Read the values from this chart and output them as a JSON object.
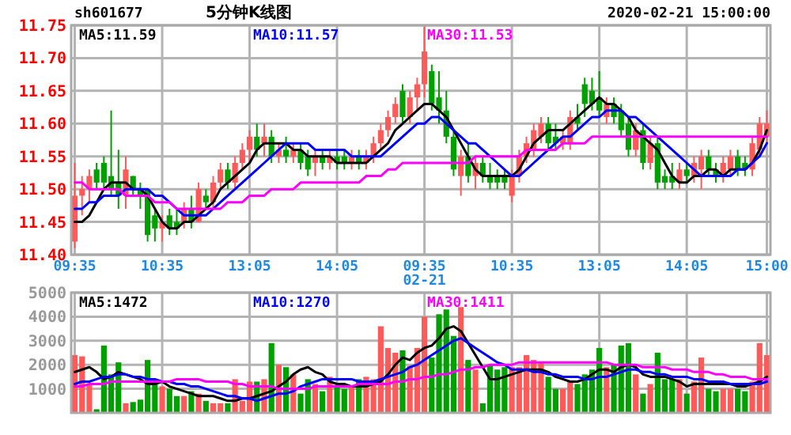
{
  "chart_data": [
    {
      "type": "candlestick",
      "title": "5分钟K线图",
      "subtitle": "sh601677",
      "annotations": [
        "2020-02-21 15:00:00"
      ],
      "categories": [
        "09:35",
        null,
        null,
        null,
        null,
        null,
        null,
        null,
        null,
        null,
        null,
        null,
        "10:35",
        null,
        null,
        null,
        null,
        null,
        null,
        null,
        null,
        null,
        null,
        null,
        "13:05",
        null,
        null,
        null,
        null,
        null,
        null,
        null,
        null,
        null,
        null,
        null,
        "14:05",
        null,
        null,
        null,
        null,
        null,
        null,
        null,
        null,
        null,
        null,
        null,
        "09:35\n02-21",
        null,
        null,
        null,
        null,
        null,
        null,
        null,
        null,
        null,
        null,
        null,
        "10:35",
        null,
        null,
        null,
        null,
        null,
        null,
        null,
        null,
        null,
        null,
        null,
        "13:05",
        null,
        null,
        null,
        null,
        null,
        null,
        null,
        null,
        null,
        null,
        null,
        "14:05",
        null,
        null,
        null,
        null,
        null,
        null,
        null,
        null,
        null,
        null,
        "15:00"
      ],
      "ohlc": [
        [
          11.42,
          11.54,
          11.41,
          11.49
        ],
        [
          11.49,
          11.52,
          11.46,
          11.5
        ],
        [
          11.5,
          11.53,
          11.48,
          11.52
        ],
        [
          11.53,
          11.54,
          11.5,
          11.51
        ],
        [
          11.54,
          11.55,
          11.5,
          11.51
        ],
        [
          11.52,
          11.62,
          11.49,
          11.5
        ],
        [
          11.51,
          11.56,
          11.47,
          11.49
        ],
        [
          11.49,
          11.55,
          11.47,
          11.53
        ],
        [
          11.52,
          11.52,
          11.49,
          11.5
        ],
        [
          11.5,
          11.51,
          11.47,
          11.49
        ],
        [
          11.5,
          11.5,
          11.42,
          11.43
        ],
        [
          11.46,
          11.47,
          11.42,
          11.44
        ],
        [
          11.44,
          11.46,
          11.42,
          11.45
        ],
        [
          11.46,
          11.47,
          11.43,
          11.44
        ],
        [
          11.45,
          11.47,
          11.43,
          11.44
        ],
        [
          11.45,
          11.48,
          11.44,
          11.47
        ],
        [
          11.47,
          11.49,
          11.44,
          11.45
        ],
        [
          11.45,
          11.51,
          11.45,
          11.5
        ],
        [
          11.49,
          11.5,
          11.47,
          11.48
        ],
        [
          11.48,
          11.52,
          11.47,
          11.51
        ],
        [
          11.51,
          11.54,
          11.5,
          11.53
        ],
        [
          11.53,
          11.54,
          11.5,
          11.51
        ],
        [
          11.51,
          11.55,
          11.5,
          11.54
        ],
        [
          11.54,
          11.57,
          11.53,
          11.56
        ],
        [
          11.56,
          11.59,
          11.54,
          11.58
        ],
        [
          11.58,
          11.6,
          11.55,
          11.56
        ],
        [
          11.57,
          11.6,
          11.55,
          11.58
        ],
        [
          11.58,
          11.59,
          11.54,
          11.55
        ],
        [
          11.55,
          11.57,
          11.54,
          11.56
        ],
        [
          11.56,
          11.58,
          11.54,
          11.55
        ],
        [
          11.55,
          11.57,
          11.54,
          11.56
        ],
        [
          11.56,
          11.57,
          11.53,
          11.54
        ],
        [
          11.55,
          11.56,
          11.52,
          11.53
        ],
        [
          11.54,
          11.56,
          11.52,
          11.55
        ],
        [
          11.55,
          11.56,
          11.53,
          11.54
        ],
        [
          11.54,
          11.56,
          11.53,
          11.55
        ],
        [
          11.55,
          11.56,
          11.53,
          11.54
        ],
        [
          11.55,
          11.56,
          11.53,
          11.54
        ],
        [
          11.54,
          11.56,
          11.53,
          11.55
        ],
        [
          11.55,
          11.56,
          11.53,
          11.54
        ],
        [
          11.54,
          11.56,
          11.53,
          11.55
        ],
        [
          11.55,
          11.58,
          11.54,
          11.57
        ],
        [
          11.57,
          11.6,
          11.56,
          11.59
        ],
        [
          11.59,
          11.62,
          11.58,
          11.61
        ],
        [
          11.61,
          11.64,
          11.6,
          11.63
        ],
        [
          11.65,
          11.66,
          11.6,
          11.61
        ],
        [
          11.61,
          11.65,
          11.6,
          11.64
        ],
        [
          11.64,
          11.67,
          11.62,
          11.66
        ],
        [
          11.66,
          11.75,
          11.64,
          11.71
        ],
        [
          11.68,
          11.69,
          11.62,
          11.63
        ],
        [
          11.64,
          11.68,
          11.6,
          11.62
        ],
        [
          11.62,
          11.65,
          11.57,
          11.58
        ],
        [
          11.58,
          11.59,
          11.52,
          11.53
        ],
        [
          11.52,
          11.56,
          11.49,
          11.55
        ],
        [
          11.55,
          11.57,
          11.51,
          11.52
        ],
        [
          11.52,
          11.55,
          11.5,
          11.54
        ],
        [
          11.54,
          11.55,
          11.51,
          11.52
        ],
        [
          11.52,
          11.54,
          11.5,
          11.51
        ],
        [
          11.52,
          11.53,
          11.5,
          11.51
        ],
        [
          11.52,
          11.53,
          11.5,
          11.51
        ],
        [
          11.49,
          11.53,
          11.48,
          11.52
        ],
        [
          11.52,
          11.56,
          11.51,
          11.55
        ],
        [
          11.55,
          11.58,
          11.54,
          11.57
        ],
        [
          11.56,
          11.6,
          11.55,
          11.59
        ],
        [
          11.58,
          11.61,
          11.57,
          11.6
        ],
        [
          11.6,
          11.61,
          11.56,
          11.57
        ],
        [
          11.58,
          11.6,
          11.56,
          11.57
        ],
        [
          11.57,
          11.59,
          11.56,
          11.58
        ],
        [
          11.57,
          11.62,
          11.56,
          11.61
        ],
        [
          11.61,
          11.63,
          11.59,
          11.6
        ],
        [
          11.66,
          11.67,
          11.61,
          11.63
        ],
        [
          11.65,
          11.67,
          11.62,
          11.63
        ],
        [
          11.64,
          11.68,
          11.61,
          11.62
        ],
        [
          11.61,
          11.64,
          11.6,
          11.63
        ],
        [
          11.63,
          11.64,
          11.6,
          11.61
        ],
        [
          11.62,
          11.63,
          11.58,
          11.59
        ],
        [
          11.6,
          11.61,
          11.55,
          11.56
        ],
        [
          11.56,
          11.6,
          11.55,
          11.59
        ],
        [
          11.59,
          11.6,
          11.53,
          11.54
        ],
        [
          11.54,
          11.58,
          11.53,
          11.57
        ],
        [
          11.57,
          11.58,
          11.5,
          11.51
        ],
        [
          11.52,
          11.53,
          11.5,
          11.51
        ],
        [
          11.52,
          11.54,
          11.5,
          11.51
        ],
        [
          11.51,
          11.54,
          11.5,
          11.53
        ],
        [
          11.53,
          11.54,
          11.51,
          11.52
        ],
        [
          11.52,
          11.55,
          11.51,
          11.54
        ],
        [
          11.53,
          11.56,
          11.5,
          11.55
        ],
        [
          11.55,
          11.56,
          11.52,
          11.53
        ],
        [
          11.53,
          11.54,
          11.51,
          11.52
        ],
        [
          11.52,
          11.55,
          11.51,
          11.54
        ],
        [
          11.53,
          11.56,
          11.52,
          11.55
        ],
        [
          11.55,
          11.56,
          11.52,
          11.53
        ],
        [
          11.54,
          11.55,
          11.52,
          11.53
        ],
        [
          11.53,
          11.58,
          11.52,
          11.57
        ],
        [
          11.56,
          11.61,
          11.55,
          11.6
        ],
        [
          11.58,
          11.62,
          11.57,
          11.6
        ]
      ],
      "colors": [
        "#ff5a5a",
        "#ff5a5a",
        "#ff5a5a",
        "#00a000",
        "#00a000",
        "#00a000",
        "#00a000",
        "#ff5a5a",
        "#00a000",
        "#00a000",
        "#00a000",
        "#00a000",
        "#ff5a5a",
        "#00a000",
        "#00a000",
        "#ff5a5a",
        "#00a000",
        "#ff5a5a",
        "#00a000",
        "#ff5a5a",
        "#ff5a5a",
        "#00a000",
        "#ff5a5a",
        "#ff5a5a",
        "#ff5a5a",
        "#00a000",
        "#ff5a5a",
        "#00a000",
        "#ff5a5a",
        "#00a000",
        "#ff5a5a",
        "#00a000",
        "#00a000",
        "#ff5a5a",
        "#00a000",
        "#ff5a5a",
        "#00a000",
        "#00a000",
        "#ff5a5a",
        "#00a000",
        "#ff5a5a",
        "#ff5a5a",
        "#ff5a5a",
        "#ff5a5a",
        "#ff5a5a",
        "#00a000",
        "#ff5a5a",
        "#ff5a5a",
        "#ff5a5a",
        "#00a000",
        "#00a000",
        "#00a000",
        "#00a000",
        "#ff5a5a",
        "#00a000",
        "#ff5a5a",
        "#00a000",
        "#00a000",
        "#00a000",
        "#00a000",
        "#ff5a5a",
        "#ff5a5a",
        "#ff5a5a",
        "#ff5a5a",
        "#ff5a5a",
        "#00a000",
        "#00a000",
        "#ff5a5a",
        "#ff5a5a",
        "#00a000",
        "#00a000",
        "#00a000",
        "#00a000",
        "#ff5a5a",
        "#00a000",
        "#00a000",
        "#00a000",
        "#ff5a5a",
        "#00a000",
        "#ff5a5a",
        "#00a000",
        "#00a000",
        "#00a000",
        "#ff5a5a",
        "#00a000",
        "#ff5a5a",
        "#ff5a5a",
        "#00a000",
        "#00a000",
        "#ff5a5a",
        "#ff5a5a",
        "#00a000",
        "#00a000",
        "#ff5a5a",
        "#ff5a5a",
        "#ff5a5a"
      ],
      "series": [
        {
          "type": "line",
          "name": "MA5:11.59",
          "color": "#000000",
          "values": [
            11.45,
            11.45,
            11.46,
            11.48,
            11.5,
            11.51,
            11.51,
            11.51,
            11.5,
            11.5,
            11.49,
            11.47,
            11.45,
            11.44,
            11.44,
            11.45,
            11.45,
            11.46,
            11.47,
            11.48,
            11.5,
            11.51,
            11.52,
            11.53,
            11.54,
            11.56,
            11.57,
            11.57,
            11.57,
            11.57,
            11.56,
            11.56,
            11.55,
            11.55,
            11.55,
            11.55,
            11.54,
            11.54,
            11.54,
            11.54,
            11.54,
            11.55,
            11.56,
            11.57,
            11.59,
            11.6,
            11.61,
            11.62,
            11.63,
            11.63,
            11.62,
            11.61,
            11.59,
            11.57,
            11.55,
            11.53,
            11.52,
            11.52,
            11.52,
            11.52,
            11.52,
            11.53,
            11.55,
            11.57,
            11.58,
            11.59,
            11.59,
            11.59,
            11.6,
            11.61,
            11.62,
            11.63,
            11.64,
            11.63,
            11.63,
            11.62,
            11.61,
            11.59,
            11.58,
            11.57,
            11.56,
            11.54,
            11.52,
            11.51,
            11.51,
            11.52,
            11.52,
            11.53,
            11.53,
            11.52,
            11.53,
            11.53,
            11.53,
            11.54,
            11.56,
            11.59
          ]
        },
        {
          "type": "line",
          "name": "MA10:11.57",
          "color": "#0000ff",
          "values": [
            11.47,
            11.47,
            11.48,
            11.48,
            11.49,
            11.49,
            11.49,
            11.5,
            11.5,
            11.5,
            11.5,
            11.49,
            11.49,
            11.48,
            11.47,
            11.46,
            11.46,
            11.46,
            11.46,
            11.47,
            11.48,
            11.49,
            11.5,
            11.51,
            11.52,
            11.53,
            11.54,
            11.55,
            11.56,
            11.57,
            11.57,
            11.57,
            11.57,
            11.56,
            11.56,
            11.56,
            11.56,
            11.56,
            11.55,
            11.55,
            11.55,
            11.55,
            11.55,
            11.56,
            11.57,
            11.58,
            11.59,
            11.6,
            11.6,
            11.61,
            11.61,
            11.6,
            11.59,
            11.58,
            11.57,
            11.57,
            11.56,
            11.55,
            11.54,
            11.53,
            11.52,
            11.52,
            11.53,
            11.54,
            11.55,
            11.56,
            11.57,
            11.58,
            11.58,
            11.59,
            11.6,
            11.61,
            11.61,
            11.62,
            11.62,
            11.62,
            11.61,
            11.61,
            11.6,
            11.59,
            11.58,
            11.57,
            11.56,
            11.55,
            11.54,
            11.53,
            11.52,
            11.52,
            11.52,
            11.52,
            11.52,
            11.53,
            11.53,
            11.54,
            11.55,
            11.57
          ]
        },
        {
          "type": "line",
          "name": "MA30:11.53",
          "color": "#ff00ff",
          "values": [
            11.51,
            11.51,
            11.5,
            11.5,
            11.5,
            11.5,
            11.5,
            11.49,
            11.49,
            11.49,
            11.49,
            11.48,
            11.48,
            11.48,
            11.47,
            11.47,
            11.47,
            11.47,
            11.47,
            11.47,
            11.47,
            11.48,
            11.48,
            11.48,
            11.49,
            11.49,
            11.49,
            11.5,
            11.5,
            11.5,
            11.5,
            11.51,
            11.51,
            11.51,
            11.51,
            11.51,
            11.51,
            11.51,
            11.51,
            11.51,
            11.52,
            11.52,
            11.52,
            11.53,
            11.53,
            11.54,
            11.54,
            11.54,
            11.54,
            11.54,
            11.54,
            11.54,
            11.54,
            11.54,
            11.54,
            11.55,
            11.55,
            11.55,
            11.55,
            11.55,
            11.55,
            11.55,
            11.56,
            11.56,
            11.56,
            11.56,
            11.56,
            11.57,
            11.57,
            11.57,
            11.57,
            11.58,
            11.58,
            11.58,
            11.58,
            11.58,
            11.58,
            11.58,
            11.58,
            11.58,
            11.58,
            11.58,
            11.58,
            11.58,
            11.58,
            11.58,
            11.58,
            11.58,
            11.58,
            11.58,
            11.58,
            11.58,
            11.58,
            11.58,
            11.58,
            11.58
          ]
        }
      ],
      "ylim": [
        11.4,
        11.75
      ],
      "yticks": [
        {
          "value": 11.4,
          "label": "11.40"
        },
        {
          "value": 11.45,
          "label": "11.45"
        },
        {
          "value": 11.5,
          "label": "11.50"
        },
        {
          "value": 11.55,
          "label": "11.55"
        },
        {
          "value": 11.6,
          "label": "11.60"
        },
        {
          "value": 11.65,
          "label": "11.65"
        },
        {
          "value": 11.7,
          "label": "11.70"
        },
        {
          "value": 11.75,
          "label": "11.75"
        }
      ],
      "grid": true,
      "legend": "top"
    },
    {
      "type": "bar",
      "tick_labels": "y",
      "categories": [
        null,
        null,
        null,
        null,
        null,
        null,
        null,
        null,
        null,
        null,
        null,
        null,
        null,
        null,
        null,
        null,
        null,
        null,
        null,
        null,
        null,
        null,
        null,
        null,
        null,
        null,
        null,
        null,
        null,
        null,
        null,
        null,
        null,
        null,
        null,
        null,
        null,
        null,
        null,
        null,
        null,
        null,
        null,
        null,
        null,
        null,
        null,
        null,
        null,
        null,
        null,
        null,
        null,
        null,
        null,
        null,
        null,
        null,
        null,
        null,
        null,
        null,
        null,
        null,
        null,
        null,
        null,
        null,
        null,
        null,
        null,
        null,
        null,
        null,
        null,
        null,
        null,
        null,
        null,
        null,
        null,
        null,
        null,
        null,
        null,
        null,
        null,
        null,
        null,
        null,
        null,
        null,
        null,
        null,
        null,
        null
      ],
      "series": [
        {
          "type": "bar",
          "colors": [
            "#ff5a5a",
            "#ff5a5a",
            "#ff5a5a",
            "#00a000",
            "#00a000",
            "#00a000",
            "#00a000",
            "#ff5a5a",
            "#00a000",
            "#00a000",
            "#00a000",
            "#00a000",
            "#ff5a5a",
            "#00a000",
            "#00a000",
            "#ff5a5a",
            "#00a000",
            "#ff5a5a",
            "#00a000",
            "#ff5a5a",
            "#ff5a5a",
            "#00a000",
            "#ff5a5a",
            "#ff5a5a",
            "#ff5a5a",
            "#00a000",
            "#ff5a5a",
            "#00a000",
            "#ff5a5a",
            "#00a000",
            "#ff5a5a",
            "#00a000",
            "#00a000",
            "#ff5a5a",
            "#00a000",
            "#ff5a5a",
            "#00a000",
            "#00a000",
            "#ff5a5a",
            "#00a000",
            "#ff5a5a",
            "#ff5a5a",
            "#ff5a5a",
            "#ff5a5a",
            "#ff5a5a",
            "#00a000",
            "#ff5a5a",
            "#ff5a5a",
            "#ff5a5a",
            "#00a000",
            "#00a000",
            "#00a000",
            "#00a000",
            "#ff5a5a",
            "#00a000",
            "#ff5a5a",
            "#00a000",
            "#00a000",
            "#00a000",
            "#00a000",
            "#ff5a5a",
            "#ff5a5a",
            "#ff5a5a",
            "#ff5a5a",
            "#ff5a5a",
            "#00a000",
            "#00a000",
            "#ff5a5a",
            "#ff5a5a",
            "#00a000",
            "#00a000",
            "#00a000",
            "#00a000",
            "#ff5a5a",
            "#00a000",
            "#00a000",
            "#00a000",
            "#ff5a5a",
            "#00a000",
            "#ff5a5a",
            "#00a000",
            "#00a000",
            "#00a000",
            "#ff5a5a",
            "#00a000",
            "#ff5a5a",
            "#ff5a5a",
            "#00a000",
            "#00a000",
            "#ff5a5a",
            "#ff5a5a",
            "#00a000",
            "#00a000",
            "#ff5a5a",
            "#ff5a5a",
            "#ff5a5a"
          ],
          "values": [
            2400,
            2350,
            1200,
            150,
            2800,
            1600,
            2100,
            400,
            450,
            550,
            2200,
            1300,
            1100,
            1000,
            700,
            700,
            900,
            800,
            500,
            400,
            400,
            400,
            1400,
            500,
            1300,
            1300,
            1400,
            2900,
            2000,
            1900,
            1600,
            800,
            1400,
            1200,
            900,
            1500,
            1100,
            1000,
            1100,
            1400,
            1500,
            1400,
            3600,
            2700,
            2500,
            2600,
            1950,
            2700,
            4000,
            2300,
            4100,
            4300,
            3200,
            4400,
            2200,
            1800,
            400,
            2000,
            1800,
            1900,
            1900,
            1900,
            2400,
            2200,
            2100,
            1500,
            1000,
            1000,
            1300,
            1200,
            1600,
            1800,
            2700,
            1900,
            2000,
            2800,
            2900,
            1600,
            800,
            1200,
            2500,
            1400,
            1400,
            1400,
            800,
            1300,
            2300,
            1000,
            900,
            1000,
            1000,
            1000,
            900,
            1300,
            2900,
            2400
          ]
        },
        {
          "type": "line",
          "name": "MA5:1472",
          "color": "#000000",
          "values": [
            1700,
            1800,
            1900,
            1700,
            1400,
            1500,
            1700,
            1600,
            1500,
            1400,
            1200,
            1200,
            1300,
            1100,
            1000,
            900,
            800,
            700,
            700,
            700,
            600,
            500,
            500,
            600,
            600,
            700,
            800,
            900,
            1100,
            1300,
            1600,
            1800,
            1900,
            1700,
            1600,
            1300,
            1200,
            1200,
            1100,
            1100,
            1100,
            1200,
            1300,
            1600,
            2000,
            2300,
            2200,
            2500,
            2700,
            2800,
            3100,
            3500,
            3600,
            3400,
            2900,
            2400,
            1900,
            1400,
            1400,
            1500,
            1600,
            1700,
            1800,
            1800,
            1800,
            1700,
            1500,
            1400,
            1300,
            1300,
            1400,
            1600,
            1800,
            1800,
            1700,
            1900,
            2000,
            1900,
            1600,
            1500,
            1500,
            1500,
            1400,
            1300,
            1100,
            1200,
            1200,
            1200,
            1200,
            1200,
            1200,
            1100,
            1100,
            1200,
            1300,
            1500
          ]
        },
        {
          "type": "line",
          "name": "MA10:1270",
          "color": "#0000ff",
          "values": [
            1200,
            1300,
            1300,
            1400,
            1500,
            1500,
            1600,
            1600,
            1500,
            1500,
            1400,
            1400,
            1300,
            1300,
            1200,
            1200,
            1100,
            1100,
            1000,
            900,
            800,
            700,
            700,
            600,
            600,
            500,
            600,
            700,
            800,
            800,
            900,
            1100,
            1200,
            1300,
            1400,
            1400,
            1400,
            1400,
            1400,
            1300,
            1300,
            1300,
            1400,
            1500,
            1600,
            1700,
            1900,
            2000,
            2200,
            2400,
            2600,
            2800,
            3000,
            3100,
            2900,
            2700,
            2500,
            2300,
            2100,
            2000,
            1800,
            1800,
            1800,
            1700,
            1700,
            1600,
            1600,
            1500,
            1500,
            1500,
            1400,
            1400,
            1500,
            1500,
            1600,
            1700,
            1800,
            1800,
            1700,
            1700,
            1600,
            1600,
            1500,
            1500,
            1500,
            1400,
            1400,
            1300,
            1300,
            1300,
            1200,
            1200,
            1200,
            1200,
            1200,
            1300
          ]
        },
        {
          "type": "line",
          "name": "MA30:1411",
          "color": "#ff00ff",
          "values": [
            1100,
            1100,
            1200,
            1200,
            1200,
            1300,
            1300,
            1300,
            1300,
            1300,
            1300,
            1300,
            1300,
            1300,
            1400,
            1400,
            1400,
            1400,
            1300,
            1300,
            1300,
            1300,
            1200,
            1200,
            1100,
            1100,
            1100,
            1100,
            1000,
            1000,
            1000,
            1000,
            1000,
            1100,
            1100,
            1100,
            1100,
            1100,
            1100,
            1200,
            1200,
            1200,
            1200,
            1200,
            1300,
            1300,
            1400,
            1400,
            1500,
            1500,
            1600,
            1600,
            1700,
            1800,
            1800,
            1900,
            1900,
            2000,
            2000,
            2000,
            2000,
            2100,
            2100,
            2100,
            2100,
            2100,
            2100,
            2100,
            2100,
            2100,
            2100,
            2100,
            2100,
            2100,
            2000,
            2000,
            2000,
            2000,
            1900,
            1900,
            1900,
            1900,
            1800,
            1800,
            1800,
            1700,
            1700,
            1700,
            1600,
            1600,
            1500,
            1500,
            1500,
            1400,
            1400,
            1400
          ]
        }
      ],
      "ylim": [
        0,
        5000
      ],
      "yticks": [
        1000,
        2000,
        3000,
        4000,
        5000
      ],
      "grid": true,
      "legend": "top"
    }
  ]
}
